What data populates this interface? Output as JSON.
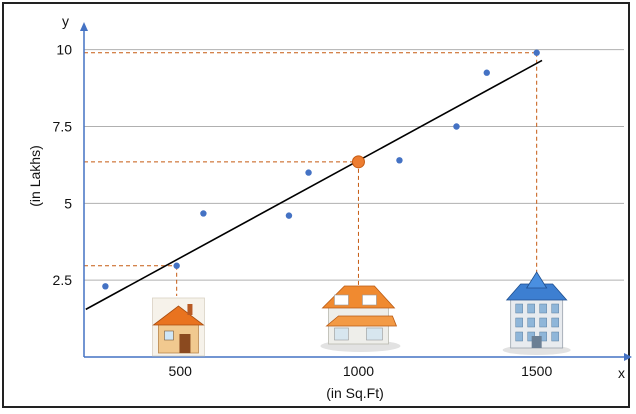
{
  "chart_data": {
    "type": "scatter",
    "xlabel": "(in Sq.Ft)",
    "ylabel": "(in Lakhs)",
    "x_axis_letter": "x",
    "y_axis_letter": "y",
    "xlim": [
      230,
      1745
    ],
    "ylim": [
      0,
      10.9
    ],
    "x_ticks": [
      {
        "value": 500,
        "label": "500"
      },
      {
        "value": 1000,
        "label": "1000"
      },
      {
        "value": 1500,
        "label": "1500"
      }
    ],
    "y_ticks": [
      {
        "value": 2.5,
        "label": "2.5"
      },
      {
        "value": 5,
        "label": "5"
      },
      {
        "value": 7.5,
        "label": "7.5"
      },
      {
        "value": 10,
        "label": "10"
      }
    ],
    "grid": "horizontal",
    "series": [
      {
        "points": [
          {
            "x": 290,
            "y": 2.3
          },
          {
            "x": 490,
            "y": 2.97
          },
          {
            "x": 565,
            "y": 4.67
          },
          {
            "x": 805,
            "y": 4.6
          },
          {
            "x": 860,
            "y": 6.0
          },
          {
            "x": 1115,
            "y": 6.4
          },
          {
            "x": 1275,
            "y": 7.5
          },
          {
            "x": 1360,
            "y": 9.25
          },
          {
            "x": 1500,
            "y": 9.9
          }
        ],
        "color": "#4472c4"
      }
    ],
    "trendline": {
      "x": [
        235,
        1515
      ],
      "y": [
        1.55,
        9.65
      ],
      "color": "#000000"
    },
    "highlight_point": {
      "x": 1000,
      "y": 6.35,
      "color": "#ed7d31"
    },
    "dashed_guides": [
      {
        "x": 490,
        "y": 2.97
      },
      {
        "x": 1000,
        "y": 6.35
      },
      {
        "x": 1500,
        "y": 9.9
      }
    ],
    "guide_color": "#c55a11",
    "house_icons": [
      {
        "x": 495,
        "name": "small-house-icon"
      },
      {
        "x": 1000,
        "name": "medium-house-icon"
      },
      {
        "x": 1500,
        "name": "large-house-icon"
      }
    ]
  }
}
